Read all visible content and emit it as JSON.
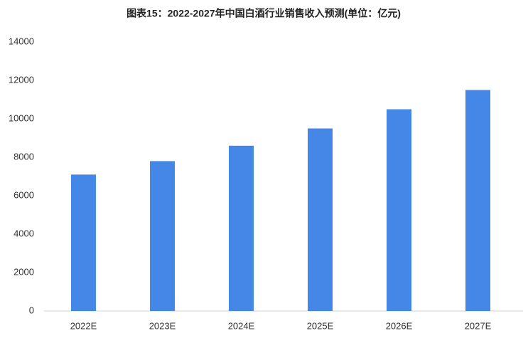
{
  "chart_data": {
    "type": "bar",
    "title": "图表15：2022-2027年中国白酒行业销售收入预测(单位：亿元)",
    "categories": [
      "2022E",
      "2023E",
      "2024E",
      "2025E",
      "2026E",
      "2027E"
    ],
    "values": [
      7100,
      7800,
      8600,
      9500,
      10500,
      11500
    ],
    "color": "#4587e6",
    "ylim": [
      0,
      14000
    ],
    "yticks": [
      0,
      2000,
      4000,
      6000,
      8000,
      10000,
      12000,
      14000
    ],
    "grid": false
  }
}
